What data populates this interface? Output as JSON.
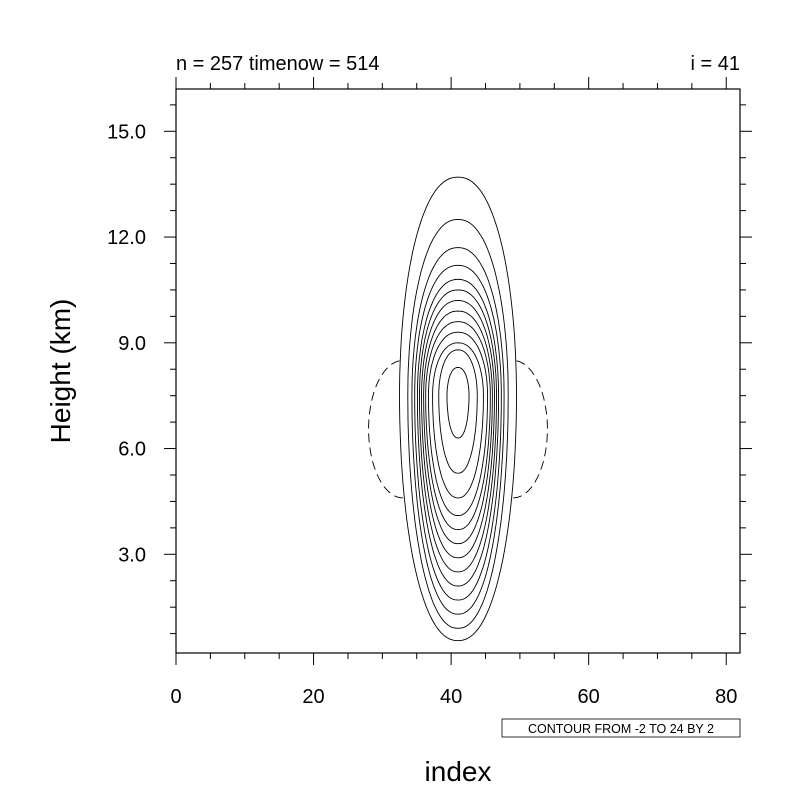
{
  "chart_data": {
    "type": "contour",
    "title_left": "n = 257 timenow = 514",
    "title_right": "i = 41",
    "xlabel": "index",
    "ylabel": "Height (km)",
    "xlim": [
      0,
      82
    ],
    "ylim": [
      0.2,
      16.2
    ],
    "x_ticks": [
      0,
      20,
      40,
      60,
      80
    ],
    "x_tick_labels": [
      "0",
      "20",
      "40",
      "60",
      "80"
    ],
    "y_ticks": [
      3.0,
      6.0,
      9.0,
      12.0,
      15.0
    ],
    "y_tick_labels": [
      "3.0",
      "6.0",
      "9.0",
      "12.0",
      "15.0"
    ],
    "contour_info": "CONTOUR FROM -2 TO 24 BY 2",
    "contour_min": -2,
    "contour_max": 24,
    "contour_interval": 2,
    "line_color": "#000000",
    "negative_dash": true,
    "field_center": {
      "x": 41,
      "y": 7.5
    },
    "positive_contours": [
      {
        "x_halfwidth": 8.5,
        "y_bottom": 0.55,
        "y_top": 13.7
      },
      {
        "x_halfwidth": 7.3,
        "y_bottom": 0.9,
        "y_top": 12.5
      },
      {
        "x_halfwidth": 6.7,
        "y_bottom": 1.3,
        "y_top": 11.7
      },
      {
        "x_halfwidth": 6.3,
        "y_bottom": 1.7,
        "y_top": 11.2
      },
      {
        "x_halfwidth": 5.9,
        "y_bottom": 2.1,
        "y_top": 10.8
      },
      {
        "x_halfwidth": 5.6,
        "y_bottom": 2.5,
        "y_top": 10.5
      },
      {
        "x_halfwidth": 5.3,
        "y_bottom": 2.9,
        "y_top": 10.2
      },
      {
        "x_halfwidth": 5.0,
        "y_bottom": 3.3,
        "y_top": 9.9
      },
      {
        "x_halfwidth": 4.7,
        "y_bottom": 3.7,
        "y_top": 9.6
      },
      {
        "x_halfwidth": 4.3,
        "y_bottom": 4.1,
        "y_top": 9.3
      },
      {
        "x_halfwidth": 3.7,
        "y_bottom": 4.6,
        "y_top": 9.0
      },
      {
        "x_halfwidth": 2.8,
        "y_bottom": 5.3,
        "y_top": 8.8
      },
      {
        "x_halfwidth": 1.6,
        "y_bottom": 6.3,
        "y_top": 8.3
      }
    ],
    "negative_contours": [
      {
        "side": "left",
        "x_inner": 33.0,
        "x_outer": 28.0,
        "y_bottom": 4.6,
        "y_top": 8.5
      },
      {
        "side": "right",
        "x_inner": 49.0,
        "x_outer": 54.0,
        "y_bottom": 4.6,
        "y_top": 8.5
      }
    ]
  }
}
